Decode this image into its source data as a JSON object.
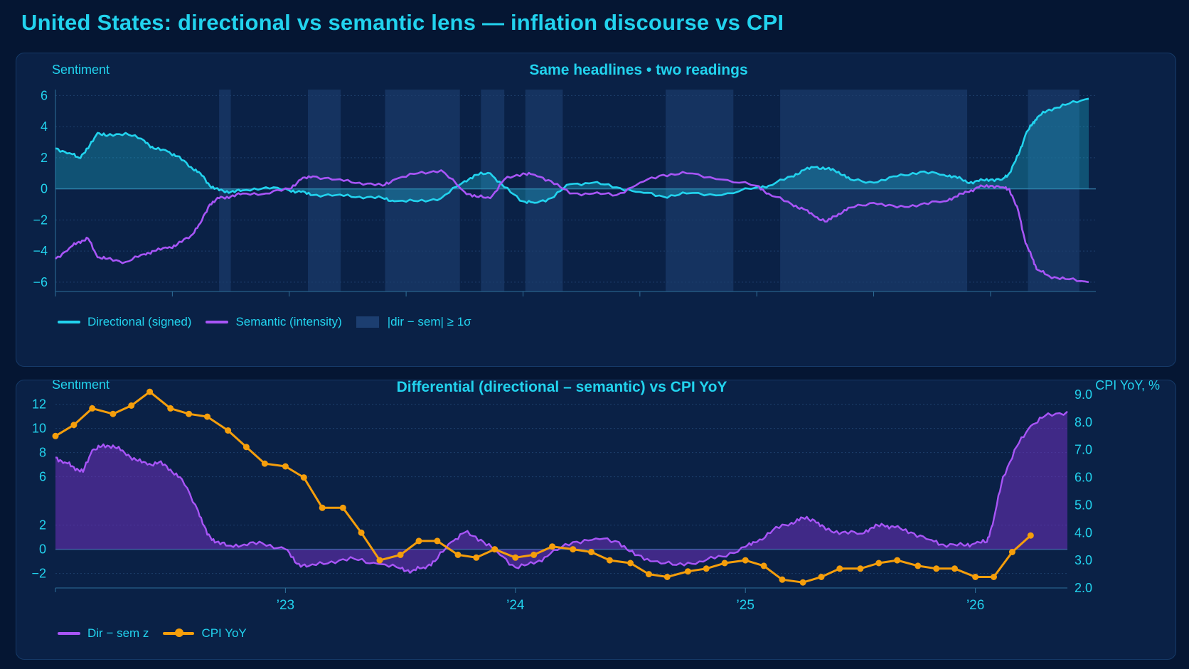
{
  "title": "United States: directional vs semantic lens — inflation discourse vs CPI",
  "colors": {
    "background": "#051633",
    "panel": "#0a2146",
    "accent_text": "#22d3ee",
    "directional": "#22d3ee",
    "semantic": "#a855f7",
    "cpi": "#f59e0b",
    "divergence_band": "#1a3a6a"
  },
  "chart_data": [
    {
      "type": "line",
      "title": "Same headlines • two readings",
      "ylabel": "Sentiment",
      "ylim": [
        -6.6,
        6.2
      ],
      "yticks": [
        6,
        4,
        2,
        0,
        -2,
        -4,
        -6
      ],
      "ytick_labels": [
        "6",
        "4",
        "2",
        "0",
        "−2",
        "−4",
        "−6"
      ],
      "grid": true,
      "legend_position": "bottom-left",
      "x_unit": "years (fractional)",
      "xlim": [
        2022.0,
        2026.42
      ],
      "legend": {
        "directional": "Directional (signed)",
        "semantic": "Semantic (intensity)",
        "band": "|dir − sem| ≥ 1σ"
      },
      "divergence_bands": [
        [
          2022.7,
          2022.75
        ],
        [
          2023.08,
          2023.22
        ],
        [
          2023.41,
          2023.73
        ],
        [
          2023.82,
          2023.92
        ],
        [
          2024.01,
          2024.17
        ],
        [
          2024.61,
          2024.9
        ],
        [
          2025.1,
          2025.9
        ],
        [
          2026.16,
          2026.38
        ]
      ],
      "series": [
        {
          "name": "Directional (signed)",
          "x": [
            2022.0,
            2022.06,
            2022.1,
            2022.14,
            2022.18,
            2022.22,
            2022.3,
            2022.38,
            2022.42,
            2022.48,
            2022.52,
            2022.58,
            2022.62,
            2022.66,
            2022.7,
            2022.75,
            2022.8,
            2022.9,
            2023.0,
            2023.05,
            2023.1,
            2023.2,
            2023.3,
            2023.4,
            2023.45,
            2023.55,
            2023.65,
            2023.75,
            2023.8,
            2023.86,
            2023.92,
            2024.0,
            2024.05,
            2024.12,
            2024.2,
            2024.3,
            2024.4,
            2024.5,
            2024.6,
            2024.7,
            2024.85,
            2025.0,
            2025.05,
            2025.15,
            2025.2,
            2025.25,
            2025.3,
            2025.35,
            2025.4,
            2025.5,
            2025.6,
            2025.7,
            2025.8,
            2025.85,
            2025.9,
            2025.95,
            2026.0,
            2026.05,
            2026.08,
            2026.12,
            2026.15,
            2026.18,
            2026.2,
            2026.25,
            2026.32,
            2026.42
          ],
          "values": [
            2.6,
            2.3,
            2.0,
            2.6,
            3.6,
            3.4,
            3.6,
            3.1,
            2.6,
            2.4,
            2.1,
            1.4,
            1.0,
            0.2,
            -0.1,
            -0.2,
            -0.1,
            0.1,
            -0.1,
            -0.2,
            -0.4,
            -0.4,
            -0.5,
            -0.6,
            -0.8,
            -0.8,
            -0.6,
            0.5,
            0.9,
            1.0,
            0.1,
            -0.8,
            -0.9,
            -0.6,
            0.3,
            0.4,
            0.1,
            -0.2,
            -0.5,
            -0.3,
            -0.4,
            0.1,
            0.2,
            0.8,
            1.2,
            1.4,
            1.3,
            1.1,
            0.6,
            0.4,
            0.8,
            1.1,
            0.9,
            0.8,
            0.4,
            0.5,
            0.6,
            0.6,
            1.0,
            2.2,
            3.5,
            4.2,
            4.6,
            5.1,
            5.4,
            5.8
          ]
        },
        {
          "name": "Semantic (intensity)",
          "x": [
            2022.0,
            2022.06,
            2022.1,
            2022.14,
            2022.18,
            2022.22,
            2022.3,
            2022.38,
            2022.42,
            2022.48,
            2022.52,
            2022.58,
            2022.62,
            2022.66,
            2022.7,
            2022.75,
            2022.8,
            2022.9,
            2023.0,
            2023.05,
            2023.1,
            2023.2,
            2023.3,
            2023.4,
            2023.45,
            2023.55,
            2023.65,
            2023.75,
            2023.8,
            2023.86,
            2023.92,
            2024.0,
            2024.05,
            2024.12,
            2024.2,
            2024.3,
            2024.4,
            2024.5,
            2024.6,
            2024.7,
            2024.85,
            2025.0,
            2025.05,
            2025.15,
            2025.2,
            2025.25,
            2025.3,
            2025.35,
            2025.4,
            2025.5,
            2025.6,
            2025.7,
            2025.8,
            2025.85,
            2025.9,
            2025.95,
            2026.0,
            2026.05,
            2026.08,
            2026.12,
            2026.15,
            2026.18,
            2026.2,
            2026.25,
            2026.32,
            2026.42
          ],
          "values": [
            -4.5,
            -3.8,
            -3.4,
            -3.2,
            -4.4,
            -4.5,
            -4.7,
            -4.2,
            -4.0,
            -3.8,
            -3.6,
            -3.0,
            -2.2,
            -1.0,
            -0.6,
            -0.5,
            -0.3,
            -0.3,
            0.0,
            0.6,
            0.8,
            0.6,
            0.4,
            0.2,
            0.6,
            1.0,
            1.2,
            -0.2,
            -0.5,
            -0.6,
            0.6,
            1.0,
            0.9,
            0.5,
            -0.3,
            -0.3,
            -0.4,
            0.4,
            0.9,
            1.0,
            0.6,
            0.2,
            -0.3,
            -1.0,
            -1.3,
            -1.8,
            -2.1,
            -1.6,
            -1.2,
            -0.9,
            -1.2,
            -1.0,
            -0.8,
            -0.5,
            -0.2,
            0.1,
            0.2,
            0.1,
            0.0,
            -1.5,
            -3.5,
            -4.5,
            -5.2,
            -5.6,
            -5.8,
            -6.0
          ]
        }
      ]
    },
    {
      "type": "line",
      "title": "Differential (directional – semantic) vs CPI YoY",
      "ylabel": "Sentiment",
      "ylabel_right": "CPI YoY, %",
      "ylim": [
        -3.2,
        12.8
      ],
      "yticks": [
        12,
        10,
        8,
        6,
        2,
        0,
        -2
      ],
      "ytick_labels": [
        "12",
        "10",
        "8",
        "6",
        "2",
        "0",
        "−2"
      ],
      "ylim_right": [
        2.0,
        9.0
      ],
      "yticks_right": [
        "9.0",
        "8.0",
        "7.0",
        "6.0",
        "5.0",
        "4.0",
        "3.0",
        "2.0"
      ],
      "xlim": [
        2022.0,
        2026.4
      ],
      "x_ticks": [
        "’23",
        "’24",
        "’25",
        "’26"
      ],
      "x_tick_values": [
        2023.0,
        2024.0,
        2025.0,
        2026.0
      ],
      "grid": true,
      "legend_position": "bottom-left",
      "legend": {
        "differential": "Dir − sem z",
        "cpi": "CPI YoY"
      },
      "series": [
        {
          "name": "Dir − sem z",
          "x": [
            2022.0,
            2022.04,
            2022.08,
            2022.12,
            2022.16,
            2022.2,
            2022.25,
            2022.3,
            2022.35,
            2022.4,
            2022.45,
            2022.5,
            2022.55,
            2022.62,
            2022.66,
            2022.7,
            2022.75,
            2022.82,
            2022.9,
            2023.0,
            2023.05,
            2023.1,
            2023.2,
            2023.3,
            2023.4,
            2023.5,
            2023.55,
            2023.6,
            2023.65,
            2023.72,
            2023.78,
            2023.85,
            2023.92,
            2024.0,
            2024.08,
            2024.15,
            2024.25,
            2024.35,
            2024.45,
            2024.52,
            2024.6,
            2024.7,
            2024.8,
            2024.9,
            2025.0,
            2025.05,
            2025.12,
            2025.2,
            2025.25,
            2025.3,
            2025.35,
            2025.42,
            2025.5,
            2025.55,
            2025.6,
            2025.65,
            2025.72,
            2025.8,
            2025.86,
            2025.95,
            2026.0,
            2026.05,
            2026.08,
            2026.12,
            2026.18,
            2026.24,
            2026.3,
            2026.4
          ],
          "values": [
            7.6,
            7.2,
            6.8,
            6.4,
            8.2,
            8.5,
            8.6,
            8.0,
            7.4,
            7.0,
            7.2,
            6.6,
            5.8,
            3.2,
            1.2,
            0.6,
            0.3,
            0.4,
            0.5,
            0.0,
            -1.2,
            -1.4,
            -1.0,
            -0.8,
            -1.2,
            -1.6,
            -1.8,
            -1.5,
            -1.0,
            0.6,
            1.4,
            0.8,
            -0.2,
            -1.5,
            -1.2,
            -0.4,
            0.6,
            0.9,
            0.6,
            -0.5,
            -1.0,
            -1.3,
            -1.0,
            -0.6,
            0.2,
            0.6,
            1.6,
            2.2,
            2.6,
            2.4,
            1.6,
            1.4,
            1.3,
            1.8,
            2.0,
            1.8,
            1.4,
            0.8,
            0.4,
            0.3,
            0.5,
            0.6,
            2.5,
            6.0,
            8.5,
            10.2,
            11.0,
            11.4
          ]
        },
        {
          "name": "CPI YoY",
          "x": [
            2022.0,
            2022.08,
            2022.16,
            2022.25,
            2022.33,
            2022.41,
            2022.5,
            2022.58,
            2022.66,
            2022.75,
            2022.83,
            2022.91,
            2023.0,
            2023.08,
            2023.16,
            2023.25,
            2023.33,
            2023.41,
            2023.5,
            2023.58,
            2023.66,
            2023.75,
            2023.83,
            2023.91,
            2024.0,
            2024.08,
            2024.16,
            2024.25,
            2024.33,
            2024.41,
            2024.5,
            2024.58,
            2024.66,
            2024.75,
            2024.83,
            2024.91,
            2025.0,
            2025.08,
            2025.16,
            2025.25,
            2025.33,
            2025.41,
            2025.5,
            2025.58,
            2025.66,
            2025.75,
            2025.83,
            2025.91,
            2026.0,
            2026.08,
            2026.16,
            2026.24
          ],
          "values": [
            7.5,
            7.9,
            8.5,
            8.3,
            8.6,
            9.1,
            8.5,
            8.3,
            8.2,
            7.7,
            7.1,
            6.5,
            6.4,
            6.0,
            4.9,
            4.9,
            4.0,
            3.0,
            3.2,
            3.7,
            3.7,
            3.2,
            3.1,
            3.4,
            3.1,
            3.2,
            3.5,
            3.4,
            3.3,
            3.0,
            2.9,
            2.5,
            2.4,
            2.6,
            2.7,
            2.9,
            3.0,
            2.8,
            2.3,
            2.2,
            2.4,
            2.7,
            2.7,
            2.9,
            3.0,
            2.8,
            2.7,
            2.7,
            2.4,
            2.4,
            3.3,
            3.9
          ]
        }
      ]
    }
  ]
}
